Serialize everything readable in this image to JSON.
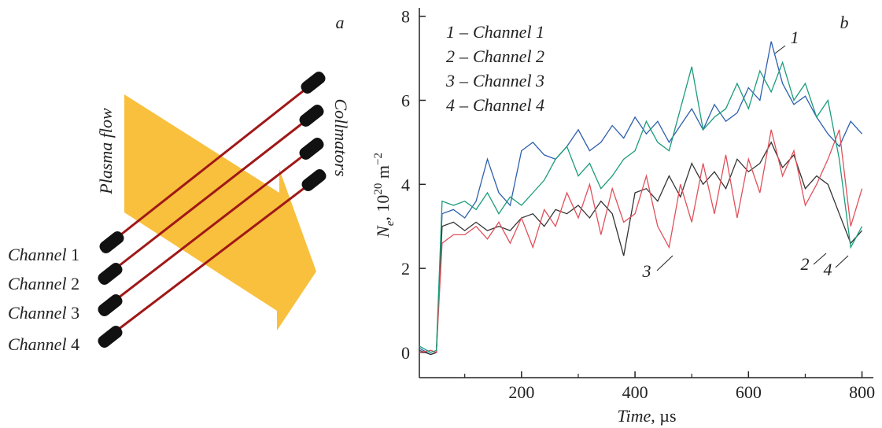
{
  "diagram": {
    "panel_label": "a",
    "plasma_flow": "Plasma flow",
    "collimators": "Collmators",
    "channels": [
      {
        "word": "Channel",
        "number": "1"
      },
      {
        "word": "Channel",
        "number": "2"
      },
      {
        "word": "Channel",
        "number": "3"
      },
      {
        "word": "Channel",
        "number": "4"
      }
    ]
  },
  "chart_data": {
    "type": "line",
    "panel_label": "b",
    "xlabel": {
      "italic": "Time",
      "rest": ", µs"
    },
    "ylabel": {
      "symbol": "N",
      "subscript": "e",
      "text": ", 10",
      "exponent": "20",
      "unit": " m",
      "unit_exponent": "−2"
    },
    "legend_separator": "–",
    "x": [
      20,
      40,
      50,
      60,
      80,
      100,
      120,
      140,
      160,
      180,
      200,
      220,
      240,
      260,
      280,
      300,
      320,
      340,
      360,
      380,
      400,
      420,
      440,
      460,
      480,
      500,
      520,
      540,
      560,
      580,
      600,
      620,
      640,
      660,
      680,
      700,
      720,
      740,
      760,
      780,
      800
    ],
    "series": [
      {
        "id": "1",
        "name": "Channel 1",
        "color": "#2e5fae",
        "values": [
          0.1,
          -0.05,
          0,
          3.3,
          3.4,
          3.2,
          3.6,
          4.6,
          3.8,
          3.5,
          4.8,
          5.0,
          4.7,
          4.6,
          4.9,
          5.3,
          4.8,
          5.0,
          5.4,
          5.1,
          5.6,
          5.2,
          5.5,
          5.0,
          5.4,
          5.8,
          5.3,
          5.9,
          5.5,
          5.7,
          6.3,
          6.0,
          7.4,
          6.4,
          5.9,
          6.1,
          5.6,
          5.2,
          4.9,
          5.5,
          5.2
        ]
      },
      {
        "id": "2",
        "name": "Channel 2",
        "color": "#333333",
        "values": [
          0.05,
          -0.05,
          0,
          3.0,
          3.1,
          2.9,
          3.1,
          2.9,
          3.0,
          2.9,
          3.2,
          3.3,
          3.0,
          3.4,
          3.3,
          3.5,
          3.2,
          3.6,
          3.3,
          2.3,
          3.8,
          3.9,
          3.6,
          4.2,
          3.7,
          4.5,
          4.0,
          4.3,
          3.9,
          4.6,
          4.3,
          4.5,
          5.0,
          4.4,
          4.7,
          3.9,
          4.2,
          4.0,
          3.3,
          2.6,
          2.9
        ]
      },
      {
        "id": "3",
        "name": "Channel 3",
        "color": "#e0505a",
        "values": [
          0,
          0.05,
          0,
          2.6,
          2.8,
          2.8,
          3.0,
          2.7,
          3.1,
          2.6,
          3.2,
          2.5,
          3.4,
          3.0,
          3.8,
          3.2,
          4.0,
          2.8,
          3.9,
          3.1,
          3.3,
          4.2,
          3.0,
          2.5,
          4.0,
          3.1,
          4.5,
          3.3,
          4.7,
          3.2,
          4.6,
          3.8,
          5.3,
          4.2,
          4.8,
          3.5,
          4.0,
          4.6,
          5.3,
          3.0,
          3.9
        ]
      },
      {
        "id": "4",
        "name": "Channel 4",
        "color": "#1a9c7a",
        "values": [
          0.15,
          0,
          0.05,
          3.6,
          3.5,
          3.6,
          3.4,
          3.8,
          3.3,
          3.7,
          3.5,
          3.8,
          4.1,
          4.6,
          4.9,
          4.2,
          4.5,
          3.9,
          4.2,
          4.6,
          4.8,
          5.5,
          5.0,
          4.8,
          5.8,
          6.8,
          5.3,
          5.6,
          5.8,
          6.4,
          5.8,
          6.7,
          6.2,
          6.9,
          6.0,
          6.4,
          5.6,
          6.0,
          4.6,
          2.5,
          3.0
        ]
      }
    ],
    "xlim": [
      20,
      820
    ],
    "ylim": [
      -0.6,
      8.2
    ],
    "xticks": [
      200,
      400,
      600,
      800
    ],
    "xminorticks": [
      100,
      300,
      500,
      700
    ],
    "yticks": [
      0,
      2,
      4,
      6,
      8
    ]
  }
}
